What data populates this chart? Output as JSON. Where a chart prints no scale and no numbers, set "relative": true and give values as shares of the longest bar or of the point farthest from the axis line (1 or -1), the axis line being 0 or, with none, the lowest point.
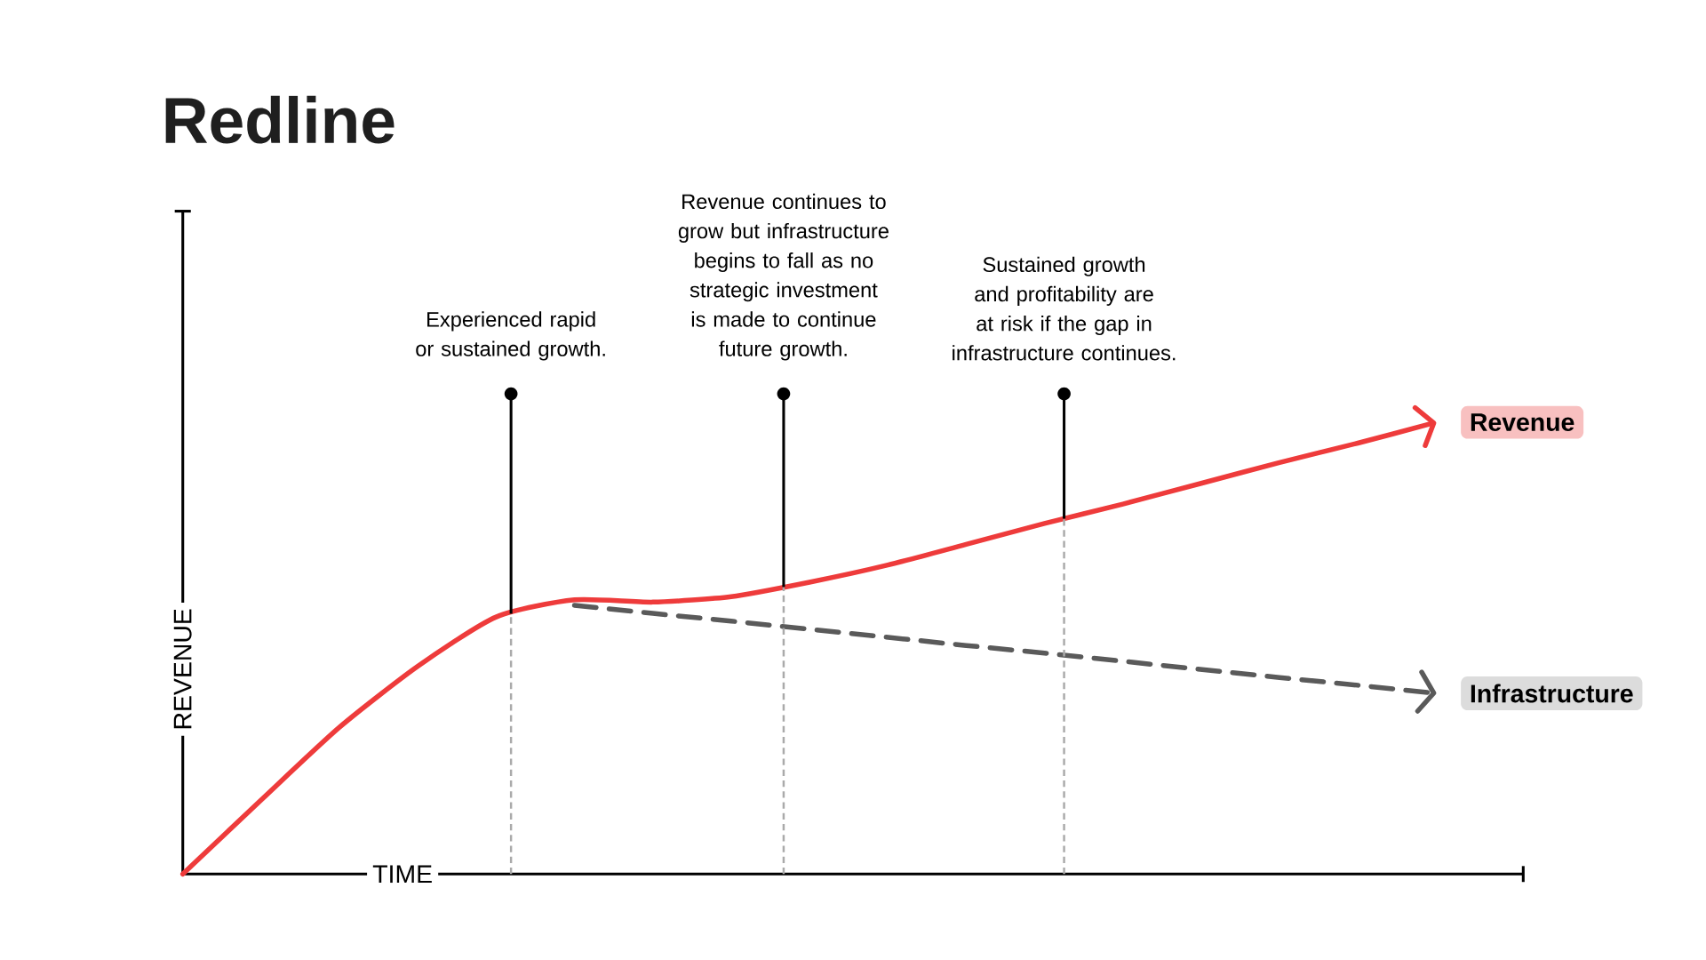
{
  "chart_data": {
    "type": "line",
    "title": "Redline",
    "xlabel": "TIME",
    "ylabel": "REVENUE",
    "relative": true,
    "categories": [
      null,
      null,
      null,
      null,
      null,
      null,
      null,
      null,
      null,
      null,
      null,
      null,
      null,
      null,
      null,
      null,
      null
    ],
    "series": [
      {
        "name": "Revenue",
        "color": "#ee3b3b",
        "line_style": "solid",
        "values": [
          0,
          0.164,
          0.325,
          0.46,
          0.569,
          0.607,
          0.602,
          0.614,
          0.646,
          0.684,
          0.73,
          0.776,
          0.819,
          0.865,
          0.911,
          0.954,
          1
        ]
      },
      {
        "name": "Infrastructure",
        "color": "#5a5a5a",
        "line_style": "dashed",
        "values": [
          null,
          null,
          null,
          null,
          null,
          0.595,
          0.577,
          0.56,
          0.542,
          0.524,
          0.506,
          0.489,
          0.471,
          0.453,
          0.435,
          0.418,
          0.4
        ]
      }
    ],
    "legend": "right",
    "annotations": [
      "Experienced rapid or sustained growth.",
      "Revenue continues to grow but infrastructure begins to fall as no strategic investment is made to continue future growth.",
      "Sustained growth and profitability are at risk if the gap in infrastructure continues."
    ]
  }
}
